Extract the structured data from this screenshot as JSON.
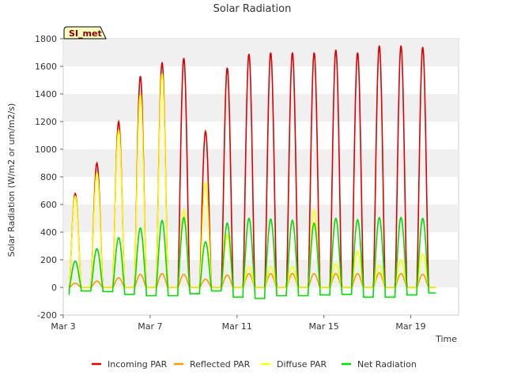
{
  "chart_data": {
    "type": "line",
    "title": "Solar Radiation",
    "site_label": "SI_met",
    "xlabel": "Time",
    "ylabel": "Solar Radiation (W/m2 or um/m2/s)",
    "x_unit": "day of March",
    "xlim": [
      3,
      21.2
    ],
    "ylim": [
      -200,
      1800
    ],
    "yticks": [
      -200,
      0,
      200,
      400,
      600,
      800,
      1000,
      1200,
      1400,
      1600,
      1800
    ],
    "xticks": [
      {
        "day": 3,
        "label": "Mar 3"
      },
      {
        "day": 7,
        "label": "Mar 7"
      },
      {
        "day": 11,
        "label": "Mar 11"
      },
      {
        "day": 15,
        "label": "Mar 15"
      },
      {
        "day": 19,
        "label": "Mar 19"
      }
    ],
    "grid": "horizontal bands",
    "legend_position": "bottom",
    "series": [
      {
        "name": "Incoming PAR",
        "color": "#dd0000",
        "daily_peaks": [
          {
            "day": 3.55,
            "value": 680
          },
          {
            "day": 4.55,
            "value": 900
          },
          {
            "day": 5.55,
            "value": 1200
          },
          {
            "day": 6.55,
            "value": 1530
          },
          {
            "day": 7.55,
            "value": 1630
          },
          {
            "day": 8.55,
            "value": 1660
          },
          {
            "day": 9.55,
            "value": 1130
          },
          {
            "day": 10.55,
            "value": 1590
          },
          {
            "day": 11.55,
            "value": 1690
          },
          {
            "day": 12.55,
            "value": 1700
          },
          {
            "day": 13.55,
            "value": 1700
          },
          {
            "day": 14.55,
            "value": 1700
          },
          {
            "day": 15.55,
            "value": 1720
          },
          {
            "day": 16.55,
            "value": 1700
          },
          {
            "day": 17.55,
            "value": 1750
          },
          {
            "day": 18.55,
            "value": 1750
          },
          {
            "day": 19.55,
            "value": 1740
          }
        ]
      },
      {
        "name": "Reflected PAR",
        "color": "#ff9900",
        "daily_peaks": [
          {
            "day": 3.55,
            "value": 30
          },
          {
            "day": 4.55,
            "value": 45
          },
          {
            "day": 5.55,
            "value": 70
          },
          {
            "day": 6.55,
            "value": 95
          },
          {
            "day": 7.55,
            "value": 100
          },
          {
            "day": 8.55,
            "value": 95
          },
          {
            "day": 9.55,
            "value": 60
          },
          {
            "day": 10.55,
            "value": 90
          },
          {
            "day": 11.55,
            "value": 100
          },
          {
            "day": 12.55,
            "value": 100
          },
          {
            "day": 13.55,
            "value": 100
          },
          {
            "day": 14.55,
            "value": 100
          },
          {
            "day": 15.55,
            "value": 100
          },
          {
            "day": 16.55,
            "value": 100
          },
          {
            "day": 17.55,
            "value": 105
          },
          {
            "day": 18.55,
            "value": 100
          },
          {
            "day": 19.55,
            "value": 95
          }
        ]
      },
      {
        "name": "Diffuse PAR",
        "color": "#ffff00",
        "daily_peaks": [
          {
            "day": 3.55,
            "value": 660
          },
          {
            "day": 4.55,
            "value": 830
          },
          {
            "day": 5.55,
            "value": 1140
          },
          {
            "day": 6.55,
            "value": 1400
          },
          {
            "day": 7.55,
            "value": 1550
          },
          {
            "day": 8.55,
            "value": 560
          },
          {
            "day": 9.55,
            "value": 760
          },
          {
            "day": 10.55,
            "value": 380
          },
          {
            "day": 11.55,
            "value": 150
          },
          {
            "day": 12.55,
            "value": 150
          },
          {
            "day": 13.55,
            "value": 150
          },
          {
            "day": 14.55,
            "value": 560
          },
          {
            "day": 15.55,
            "value": 170
          },
          {
            "day": 16.55,
            "value": 260
          },
          {
            "day": 17.55,
            "value": 160
          },
          {
            "day": 18.55,
            "value": 200
          },
          {
            "day": 19.55,
            "value": 240
          }
        ]
      },
      {
        "name": "Net Radiation",
        "color": "#00dd00",
        "daily_peaks": [
          {
            "day": 3.55,
            "value": 190
          },
          {
            "day": 4.55,
            "value": 280
          },
          {
            "day": 5.55,
            "value": 360
          },
          {
            "day": 6.55,
            "value": 430
          },
          {
            "day": 7.55,
            "value": 485
          },
          {
            "day": 8.55,
            "value": 505
          },
          {
            "day": 9.55,
            "value": 330
          },
          {
            "day": 10.55,
            "value": 465
          },
          {
            "day": 11.55,
            "value": 500
          },
          {
            "day": 12.55,
            "value": 495
          },
          {
            "day": 13.55,
            "value": 485
          },
          {
            "day": 14.55,
            "value": 465
          },
          {
            "day": 15.55,
            "value": 500
          },
          {
            "day": 16.55,
            "value": 490
          },
          {
            "day": 17.55,
            "value": 505
          },
          {
            "day": 18.55,
            "value": 505
          },
          {
            "day": 19.55,
            "value": 500
          }
        ],
        "night_values": [
          {
            "day": 3.2,
            "value": -50
          },
          {
            "day": 4.0,
            "value": -25
          },
          {
            "day": 5.0,
            "value": -30
          },
          {
            "day": 6.0,
            "value": -50
          },
          {
            "day": 7.0,
            "value": -60
          },
          {
            "day": 8.0,
            "value": -60
          },
          {
            "day": 9.0,
            "value": -45
          },
          {
            "day": 10.0,
            "value": -25
          },
          {
            "day": 11.0,
            "value": -70
          },
          {
            "day": 12.0,
            "value": -80
          },
          {
            "day": 13.0,
            "value": -60
          },
          {
            "day": 14.0,
            "value": -60
          },
          {
            "day": 15.0,
            "value": -55
          },
          {
            "day": 16.0,
            "value": -50
          },
          {
            "day": 17.0,
            "value": -70
          },
          {
            "day": 18.0,
            "value": -70
          },
          {
            "day": 19.0,
            "value": -55
          },
          {
            "day": 20.1,
            "value": -40
          }
        ]
      }
    ]
  }
}
